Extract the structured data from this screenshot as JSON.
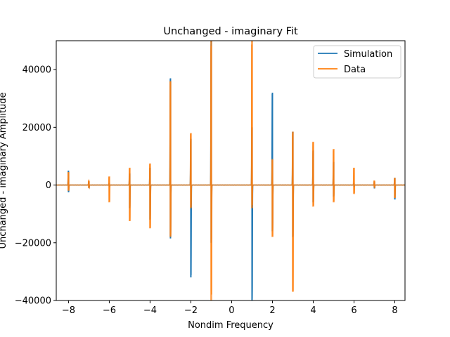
{
  "chart_data": {
    "type": "line",
    "title": "Unchanged - imaginary Fit",
    "xlabel": "Nondim Frequency",
    "ylabel": "Unchanged - imaginary Amplitude",
    "xlim": [
      -8.6,
      8.5
    ],
    "ylim": [
      -40000,
      50000
    ],
    "xticks": [
      -8,
      -6,
      -4,
      -2,
      0,
      2,
      4,
      6,
      8
    ],
    "xtick_labels": [
      "−8",
      "−6",
      "−4",
      "−2",
      "0",
      "2",
      "4",
      "6",
      "8"
    ],
    "yticks": [
      -40000,
      -20000,
      0,
      20000,
      40000
    ],
    "ytick_labels": [
      "−40000",
      "−20000",
      "0",
      "20000",
      "40000"
    ],
    "legend_position": "top-right",
    "grid": false,
    "series": [
      {
        "name": "Simulation",
        "color": "#1f77b4",
        "resonances": [
          {
            "x": -8.0,
            "high": 5000,
            "low": -2500
          },
          {
            "x": -7.0,
            "high": 1200,
            "low": -1000
          },
          {
            "x": -6.0,
            "high": 500,
            "low": -400
          },
          {
            "x": -5.0,
            "high": 4000,
            "low": -8000
          },
          {
            "x": -4.0,
            "high": 6000,
            "low": -12000
          },
          {
            "x": -3.0,
            "high": 37000,
            "low": -18500
          },
          {
            "x": -2.0,
            "high": 16000,
            "low": -32000
          },
          {
            "x": -1.0,
            "high": 50000,
            "low": -20000
          },
          {
            "x": 1.0,
            "high": 20000,
            "low": -40000
          },
          {
            "x": 2.0,
            "high": 32000,
            "low": -16000
          },
          {
            "x": 3.0,
            "high": 18500,
            "low": -18000
          },
          {
            "x": 4.0,
            "high": 12000,
            "low": -6000
          },
          {
            "x": 5.0,
            "high": 8000,
            "low": -4000
          },
          {
            "x": 6.0,
            "high": 500,
            "low": -500
          },
          {
            "x": 7.0,
            "high": 1000,
            "low": -1200
          },
          {
            "x": 8.0,
            "high": 2500,
            "low": -5000
          }
        ]
      },
      {
        "name": "Data",
        "color": "#ff7f0e",
        "resonances": [
          {
            "x": -8.0,
            "high": 4500,
            "low": -2000
          },
          {
            "x": -7.0,
            "high": 1500,
            "low": -1000
          },
          {
            "x": -6.0,
            "high": 3000,
            "low": -6000
          },
          {
            "x": -5.0,
            "high": 6000,
            "low": -12500
          },
          {
            "x": -4.0,
            "high": 7500,
            "low": -15000
          },
          {
            "x": -3.0,
            "high": 36000,
            "low": -18000
          },
          {
            "x": -2.0,
            "high": 18000,
            "low": -8000
          },
          {
            "x": -1.0,
            "high": 50000,
            "low": -40000
          },
          {
            "x": 1.0,
            "high": 50000,
            "low": -8000
          },
          {
            "x": 2.0,
            "high": 9000,
            "low": -18000
          },
          {
            "x": 3.0,
            "high": 18500,
            "low": -37000
          },
          {
            "x": 4.0,
            "high": 15000,
            "low": -7500
          },
          {
            "x": 5.0,
            "high": 12500,
            "low": -6000
          },
          {
            "x": 6.0,
            "high": 6000,
            "low": -3000
          },
          {
            "x": 7.0,
            "high": 1500,
            "low": -800
          },
          {
            "x": 8.0,
            "high": 2500,
            "low": -4500
          }
        ]
      }
    ]
  }
}
